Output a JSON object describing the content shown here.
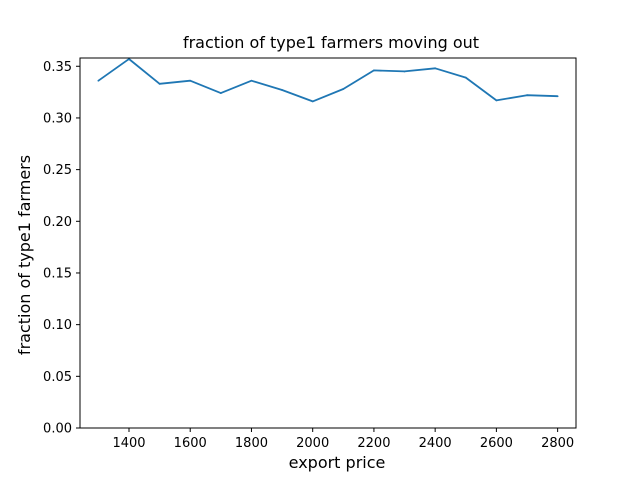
{
  "chart_data": {
    "type": "line",
    "title": "fraction of type1 farmers moving out",
    "xlabel": "export price",
    "ylabel": "fraction of type1 farmers",
    "xlim": [
      1240,
      2860
    ],
    "ylim": [
      0.0,
      0.358
    ],
    "xticks": [
      1400,
      1600,
      1800,
      2000,
      2200,
      2400,
      2600,
      2800
    ],
    "xtick_labels": [
      "1400",
      "1600",
      "1800",
      "2000",
      "2200",
      "2400",
      "2600",
      "2800"
    ],
    "yticks": [
      0.0,
      0.05,
      0.1,
      0.15,
      0.2,
      0.25,
      0.3,
      0.35
    ],
    "ytick_labels": [
      "0.00",
      "0.05",
      "0.10",
      "0.15",
      "0.20",
      "0.25",
      "0.30",
      "0.35"
    ],
    "grid": false,
    "series": [
      {
        "color": "#1f77b4",
        "x": [
          1300,
          1400,
          1500,
          1600,
          1700,
          1800,
          1900,
          2000,
          2100,
          2200,
          2300,
          2400,
          2500,
          2600,
          2700,
          2800
        ],
        "values": [
          0.336,
          0.357,
          0.333,
          0.336,
          0.324,
          0.336,
          0.327,
          0.316,
          0.328,
          0.346,
          0.345,
          0.348,
          0.339,
          0.317,
          0.322,
          0.321
        ]
      }
    ]
  }
}
